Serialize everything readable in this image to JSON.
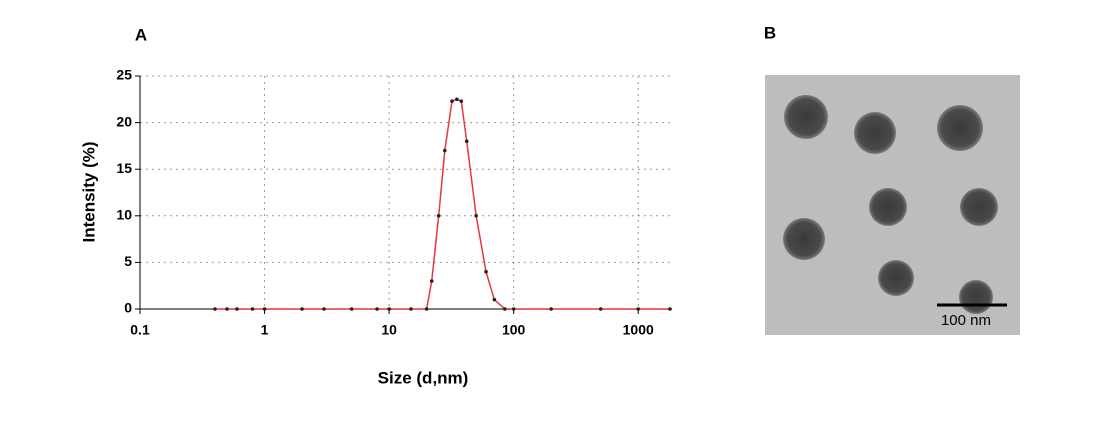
{
  "panel_a": {
    "label": "A"
  },
  "panel_b": {
    "label": "B",
    "scale_bar": "100 nm"
  },
  "chart_data": {
    "type": "line",
    "x_label": "Size (d,nm)",
    "y_label": "Intensity (%)",
    "x_scale": "log",
    "grid": true,
    "markers": true,
    "xlim": [
      0.1,
      1800
    ],
    "ylim": [
      0,
      25
    ],
    "xticks": [
      0.1,
      1,
      10,
      100,
      1000
    ],
    "yticks": [
      0,
      5,
      10,
      15,
      20,
      25
    ],
    "series": [
      {
        "name": "Intensity",
        "color": "#e8373a",
        "x": [
          0.4,
          0.5,
          0.6,
          0.8,
          1,
          2,
          3,
          5,
          8,
          10,
          15,
          20,
          22,
          25,
          28,
          32,
          35,
          38,
          42,
          50,
          60,
          70,
          85,
          100,
          200,
          500,
          1000,
          1800
        ],
        "values": [
          0,
          0,
          0,
          0,
          0,
          0,
          0,
          0,
          0,
          0,
          0,
          0,
          3,
          10,
          17,
          22.3,
          22.5,
          22.3,
          18,
          10,
          4,
          1,
          0,
          0,
          0,
          0,
          0,
          0
        ]
      }
    ]
  }
}
